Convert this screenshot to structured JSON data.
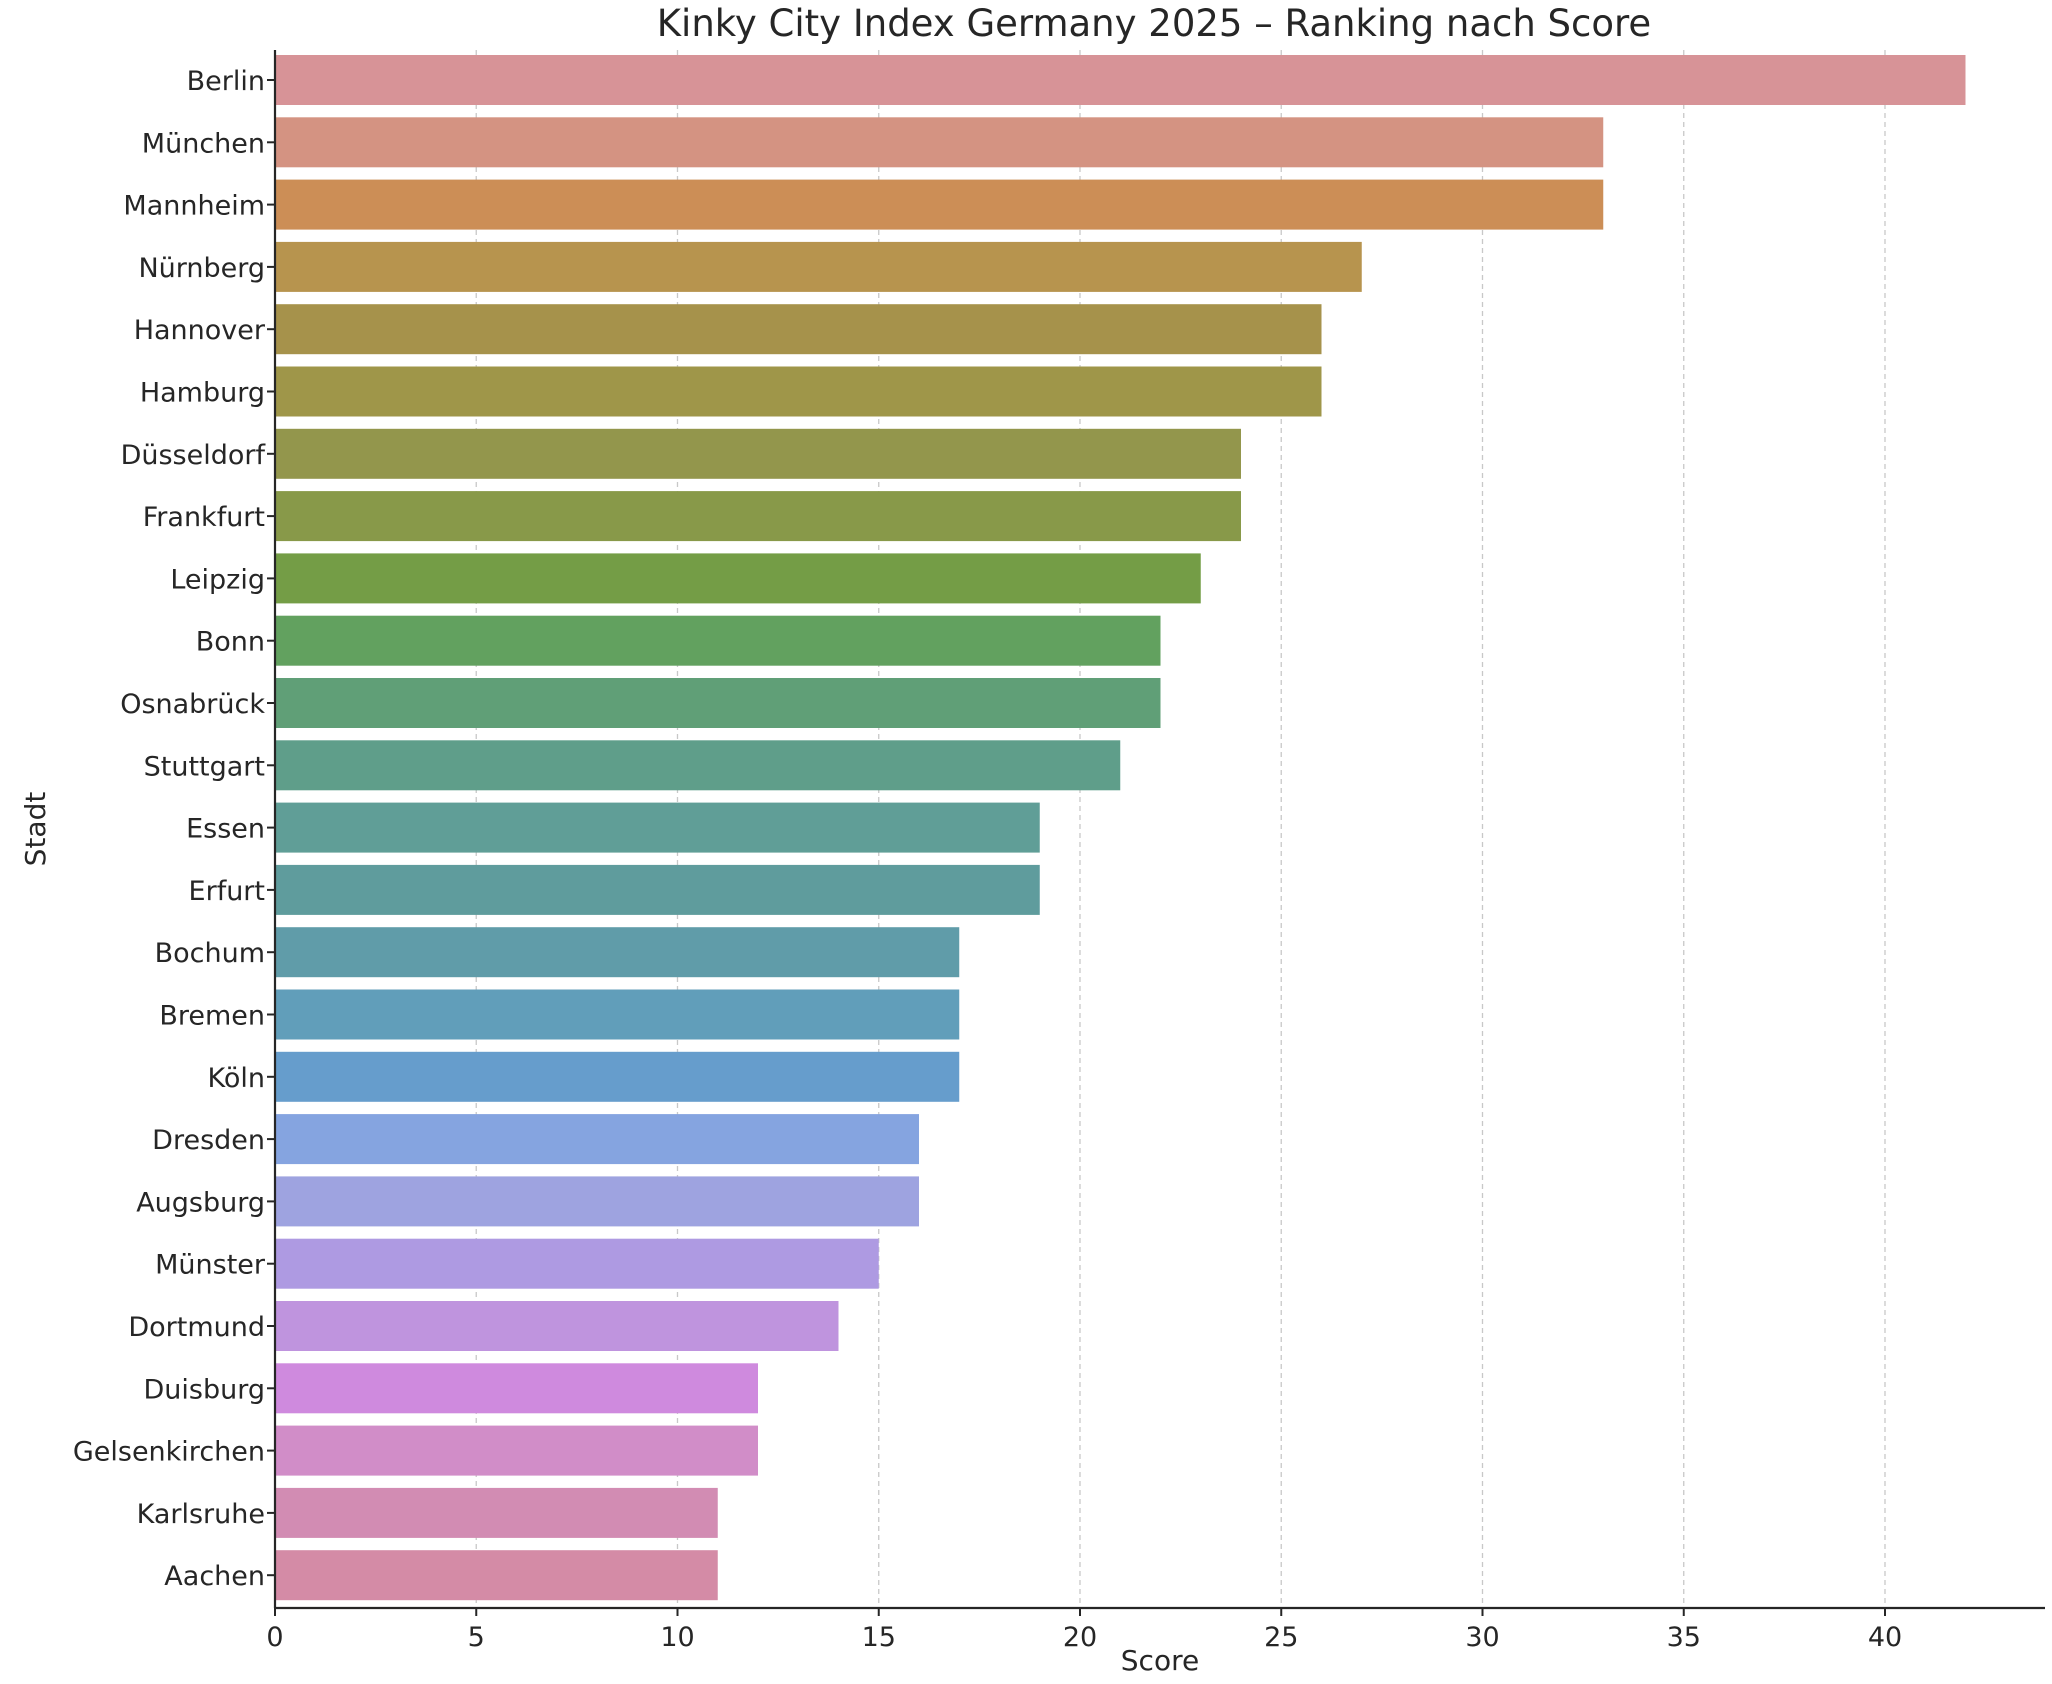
{
  "chart_data": {
    "type": "bar",
    "orientation": "horizontal",
    "title": "Kinky City Index Germany 2025 – Ranking nach Score",
    "xlabel": "Score",
    "ylabel": "Stadt",
    "xlim": [
      0,
      44
    ],
    "xticks": [
      0,
      5,
      10,
      15,
      20,
      25,
      30,
      35,
      40
    ],
    "grid": "x-axis dashed",
    "categories": [
      "Berlin",
      "München",
      "Mannheim",
      "Nürnberg",
      "Hannover",
      "Hamburg",
      "Düsseldorf",
      "Frankfurt",
      "Leipzig",
      "Bonn",
      "Osnabrück",
      "Stuttgart",
      "Essen",
      "Erfurt",
      "Bochum",
      "Bremen",
      "Köln",
      "Dresden",
      "Augsburg",
      "Münster",
      "Dortmund",
      "Duisburg",
      "Gelsenkirchen",
      "Karlsruhe",
      "Aachen"
    ],
    "values": [
      42,
      33,
      33,
      27,
      26,
      26,
      24,
      24,
      23,
      22,
      22,
      21,
      19,
      19,
      17,
      17,
      17,
      16,
      16,
      15,
      14,
      12,
      12,
      11,
      11
    ],
    "colors": [
      "#d79397",
      "#d49382",
      "#cc8e56",
      "#b7944e",
      "#a6924b",
      "#9f9649",
      "#93964c",
      "#889949",
      "#749d46",
      "#62a15f",
      "#609f77",
      "#5f9e8a",
      "#609e97",
      "#5f9c9d",
      "#609ca9",
      "#619eba",
      "#669dcc",
      "#85a4e0",
      "#9ea3e0",
      "#ae9ae2",
      "#bf94de",
      "#cf8ade",
      "#d18dc8",
      "#d28cb3",
      "#d48ba6"
    ]
  }
}
